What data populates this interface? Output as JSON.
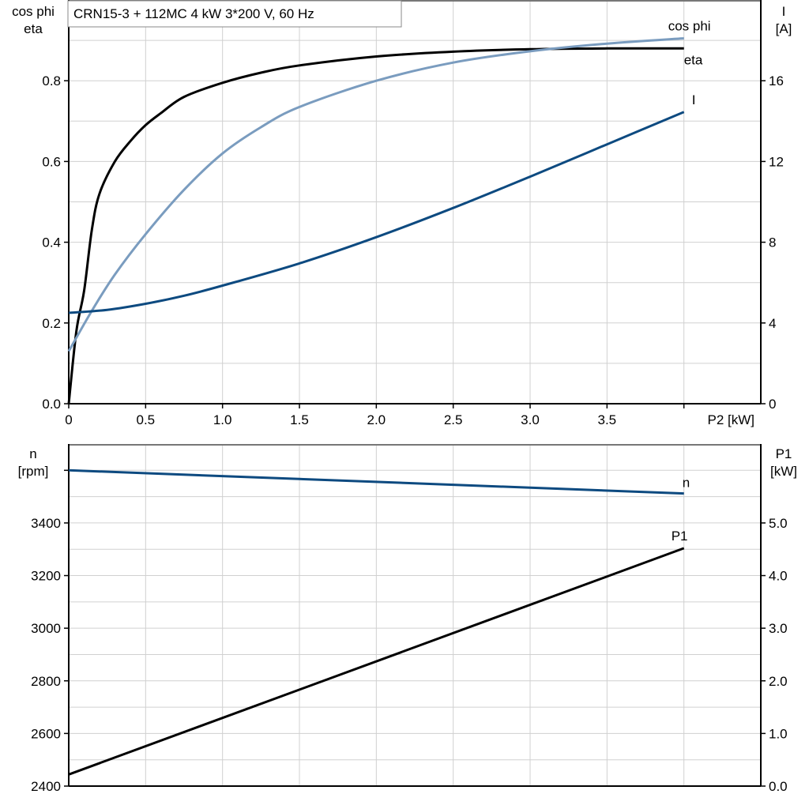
{
  "chart_data": [
    {
      "type": "line",
      "title": "CRN15-3 + 112MC   4 kW   3*200 V, 60 Hz",
      "xlabel": "P2 [kW]",
      "xlim": [
        0,
        4.5
      ],
      "xticks": [
        "0",
        "0.5",
        "1.0",
        "1.5",
        "2.0",
        "2.5",
        "3.0",
        "3.5"
      ],
      "ylabel_left": [
        "cos phi",
        "eta"
      ],
      "ylim_left": [
        0,
        1.0
      ],
      "yticks_left": [
        "0.0",
        "0.2",
        "0.4",
        "0.6",
        "0.8"
      ],
      "ylabel_right": [
        "I",
        "[A]"
      ],
      "ylim_right": [
        0,
        20
      ],
      "yticks_right": [
        "0",
        "4",
        "8",
        "12",
        "16"
      ],
      "grid": true,
      "series": [
        {
          "name": "eta",
          "axis": "left",
          "color": "#000000",
          "x": [
            0,
            0.05,
            0.1,
            0.15,
            0.2,
            0.3,
            0.4,
            0.5,
            0.6,
            0.75,
            1.0,
            1.25,
            1.5,
            2.0,
            2.5,
            3.0,
            3.5,
            4.0
          ],
          "y": [
            0,
            0.18,
            0.28,
            0.43,
            0.52,
            0.6,
            0.65,
            0.69,
            0.72,
            0.76,
            0.795,
            0.82,
            0.838,
            0.86,
            0.872,
            0.878,
            0.88,
            0.88
          ]
        },
        {
          "name": "cos phi",
          "axis": "left",
          "color": "#7a9cbf",
          "x": [
            0,
            0.15,
            0.3,
            0.5,
            0.75,
            1.0,
            1.25,
            1.5,
            2.0,
            2.5,
            3.0,
            3.5,
            4.0
          ],
          "y": [
            0.13,
            0.23,
            0.32,
            0.42,
            0.53,
            0.62,
            0.685,
            0.735,
            0.8,
            0.845,
            0.873,
            0.892,
            0.905
          ]
        },
        {
          "name": "I",
          "axis": "right",
          "color": "#0d4a80",
          "x": [
            0,
            0.25,
            0.5,
            0.75,
            1.0,
            1.5,
            2.0,
            2.5,
            3.0,
            3.5,
            4.0
          ],
          "y": [
            4.5,
            4.65,
            4.95,
            5.35,
            5.85,
            6.95,
            8.25,
            9.7,
            11.25,
            12.85,
            14.45
          ]
        }
      ]
    },
    {
      "type": "line",
      "xlim": [
        0,
        4.5
      ],
      "ylabel_left": [
        "n",
        "[rpm]"
      ],
      "ylim_left": [
        2400,
        3700
      ],
      "yticks_left": [
        "2400",
        "2600",
        "2800",
        "3000",
        "3200",
        "3400"
      ],
      "ylabel_right": [
        "P1",
        "[kW]"
      ],
      "ylim_right": [
        0,
        6.5
      ],
      "yticks_right": [
        "0.0",
        "1.0",
        "2.0",
        "3.0",
        "4.0",
        "5.0"
      ],
      "grid": true,
      "series": [
        {
          "name": "n",
          "axis": "left",
          "color": "#0d4a80",
          "x": [
            0,
            4.0
          ],
          "y": [
            3600,
            3512
          ]
        },
        {
          "name": "P1",
          "axis": "right",
          "color": "#000000",
          "x": [
            0,
            4.0
          ],
          "y": [
            0.22,
            4.52
          ]
        }
      ]
    }
  ]
}
